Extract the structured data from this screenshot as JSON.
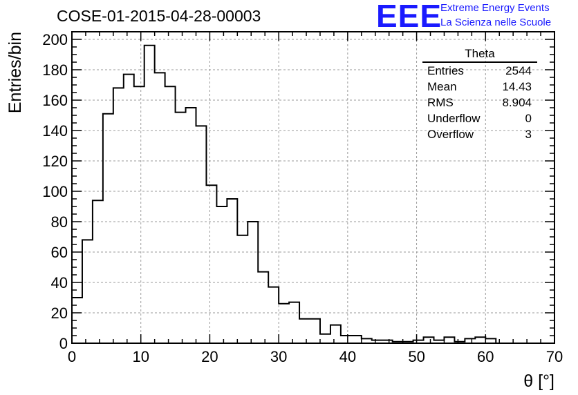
{
  "header": {
    "title": "COSE-01-2015-04-28-00003",
    "logo_mark": "EEE",
    "logo_line1": "Extreme Energy Events",
    "logo_line2": "La Scienza nelle Scuole",
    "logo_color": "#1a1aff"
  },
  "stats_box": {
    "name": "Theta",
    "rows": [
      {
        "label": "Entries",
        "value": "2544"
      },
      {
        "label": "Mean",
        "value": "14.43"
      },
      {
        "label": "RMS",
        "value": "8.904"
      },
      {
        "label": "Underflow",
        "value": "0"
      },
      {
        "label": "Overflow",
        "value": "3"
      }
    ]
  },
  "chart_data": {
    "type": "histogram",
    "title": "COSE-01-2015-04-28-00003",
    "xlabel": "θ [°]",
    "ylabel": "Entries/bin",
    "xlim": [
      0,
      70
    ],
    "ylim": [
      0,
      205
    ],
    "bin_width": 1.5,
    "x_ticks": [
      0,
      10,
      20,
      30,
      40,
      50,
      60,
      70
    ],
    "y_ticks": [
      0,
      20,
      40,
      60,
      80,
      100,
      120,
      140,
      160,
      180,
      200
    ],
    "grid": true,
    "line_color": "#000000",
    "bin_edges": [
      0,
      1.5,
      3,
      4.5,
      6,
      7.5,
      9,
      10.5,
      12,
      13.5,
      15,
      16.5,
      18,
      19.5,
      21,
      22.5,
      24,
      25.5,
      27,
      28.5,
      30,
      31.5,
      33,
      34.5,
      36,
      37.5,
      39,
      40.5,
      42,
      43.5,
      45,
      46.5,
      48,
      49.5,
      51,
      52.5,
      54,
      55.5,
      57,
      58.5,
      60,
      61.5
    ],
    "values": [
      30,
      68,
      94,
      151,
      168,
      177,
      169,
      196,
      178,
      169,
      152,
      155,
      143,
      104,
      90,
      95,
      71,
      80,
      47,
      37,
      26,
      27,
      16,
      16,
      6,
      12,
      5,
      5,
      3,
      2,
      2,
      1,
      1,
      2,
      4,
      2,
      4,
      1,
      3,
      4,
      3
    ]
  }
}
